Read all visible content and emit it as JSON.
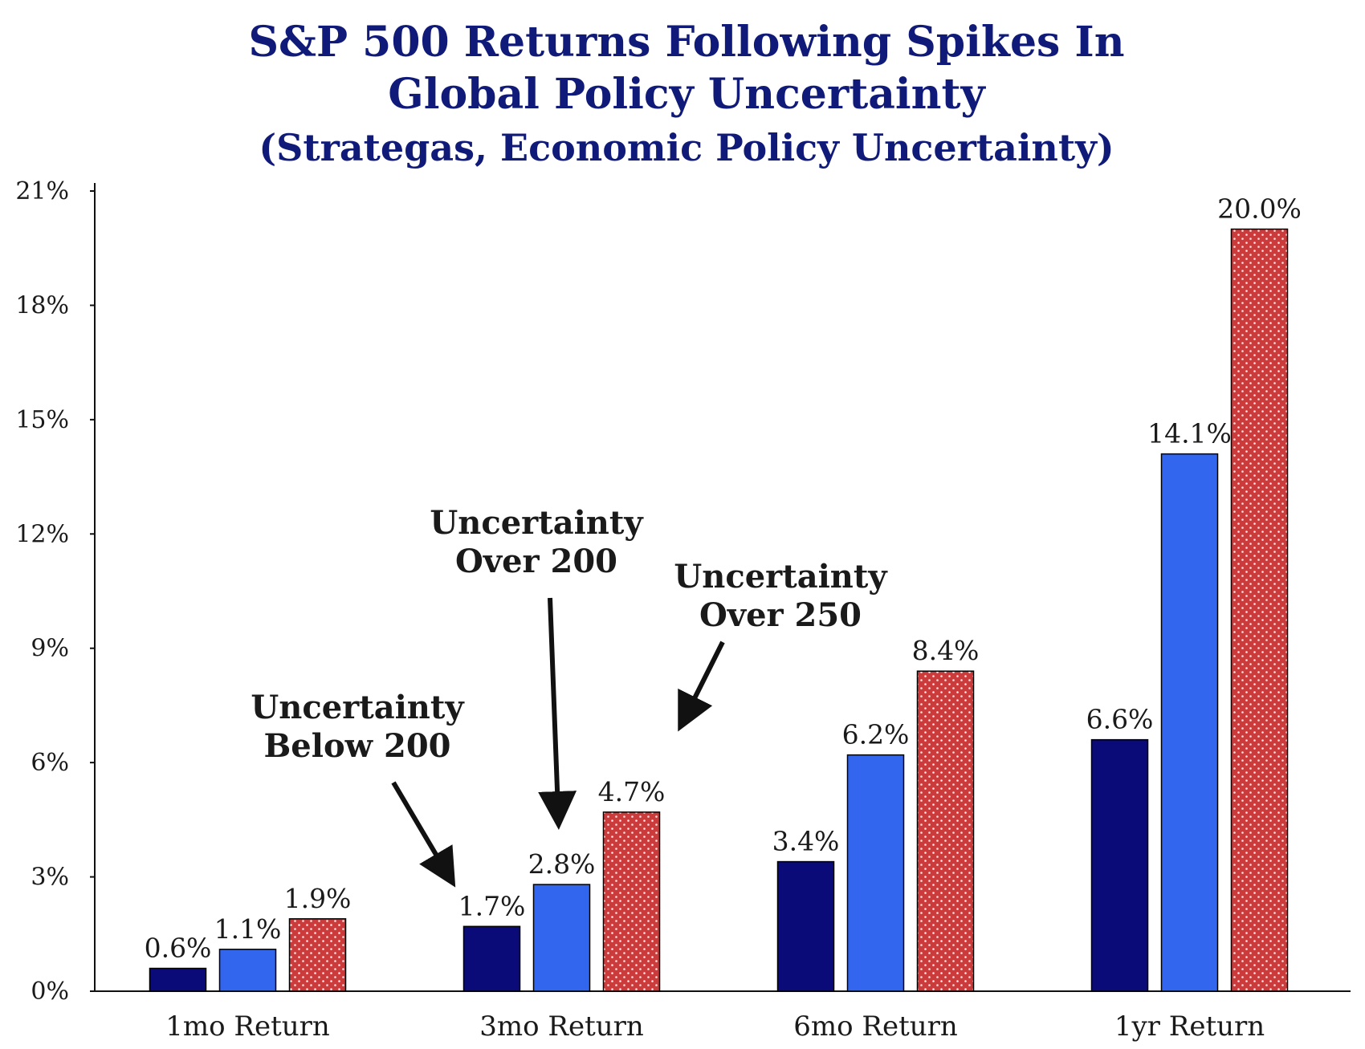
{
  "chart_data": {
    "type": "bar",
    "title": "S&P 500 Returns Following Spikes In Global Policy Uncertainty",
    "title_lines": [
      "S&P 500 Returns Following Spikes In",
      "Global Policy Uncertainty"
    ],
    "subtitle": "(Strategas, Economic Policy Uncertainty)",
    "categories": [
      "1mo Return",
      "3mo Return",
      "6mo Return",
      "1yr Return"
    ],
    "series": [
      {
        "name": "Uncertainty Below 200",
        "values": [
          0.6,
          1.7,
          3.4,
          6.6
        ],
        "labels": [
          "0.6%",
          "1.7%",
          "3.4%",
          "6.6%"
        ],
        "color": "#0a0a78"
      },
      {
        "name": "Uncertainty Over 200",
        "values": [
          1.1,
          2.8,
          6.2,
          14.1
        ],
        "labels": [
          "1.1%",
          "2.8%",
          "6.2%",
          "14.1%"
        ],
        "color": "#3366ee"
      },
      {
        "name": "Uncertainty Over 250",
        "values": [
          1.9,
          4.7,
          8.4,
          20.0
        ],
        "labels": [
          "1.9%",
          "4.7%",
          "8.4%",
          "20.0%"
        ],
        "color": "#cc3b3b"
      }
    ],
    "yticks": [
      0,
      3,
      6,
      9,
      12,
      15,
      18,
      21
    ],
    "ytick_labels": [
      "0%",
      "3%",
      "6%",
      "9%",
      "12%",
      "15%",
      "18%",
      "21%"
    ],
    "ylim": [
      0,
      21
    ],
    "xlabel": "",
    "ylabel": "",
    "grid": false,
    "annotations": [
      {
        "series": 0,
        "lines": [
          "Uncertainty",
          "Below 200"
        ]
      },
      {
        "series": 1,
        "lines": [
          "Uncertainty",
          "Over 200"
        ]
      },
      {
        "series": 2,
        "lines": [
          "Uncertainty",
          "Over 250"
        ]
      }
    ]
  }
}
